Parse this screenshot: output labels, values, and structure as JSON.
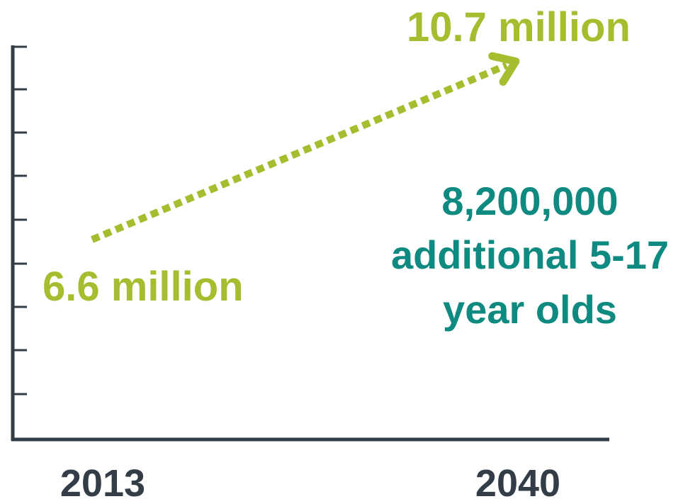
{
  "chart_data": {
    "type": "line",
    "x": [
      "2013",
      "2040"
    ],
    "series": [
      {
        "values": [
          6.6,
          10.7
        ],
        "point_labels": [
          "6.6 million",
          "10.7 million"
        ]
      }
    ],
    "annotation": [
      "8,200,000",
      "additional 5-17",
      "year olds"
    ],
    "line_style": "dotted-arrow",
    "grid": false,
    "y_axis_labels": false
  },
  "colors": {
    "series": "#a5bd2f",
    "annotation": "#0f8a80",
    "axis": "#333d47"
  }
}
